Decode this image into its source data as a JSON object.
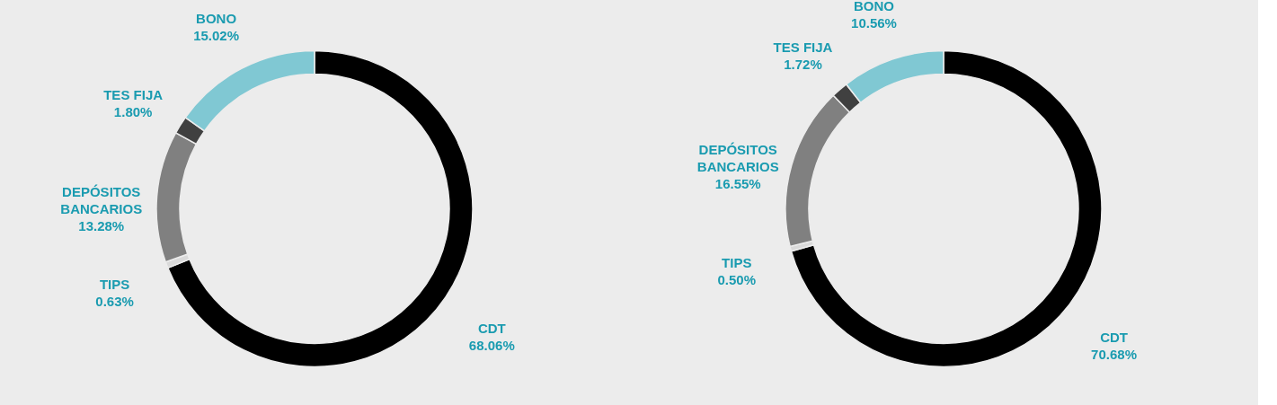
{
  "chart_data": [
    {
      "type": "donut",
      "categories": [
        "CDT",
        "TIPS",
        "DEPÓSITOS BANCARIOS",
        "TES FIJA",
        "BONO"
      ],
      "values": [
        68.06,
        0.63,
        13.28,
        1.8,
        15.02
      ],
      "value_labels": [
        "68.06%",
        "0.63%",
        "13.28%",
        "1.80%",
        "15.02%"
      ],
      "colors": [
        "#000000",
        "#d9d9d9",
        "#808080",
        "#404040",
        "#80c8d3"
      ],
      "legend": false
    },
    {
      "type": "donut",
      "categories": [
        "CDT",
        "TIPS",
        "DEPÓSITOS BANCARIOS",
        "TES FIJA",
        "BONO"
      ],
      "values": [
        70.68,
        0.5,
        16.55,
        1.72,
        10.56
      ],
      "value_labels": [
        "70.68%",
        "0.50%",
        "16.55%",
        "1.72%",
        "10.56%"
      ],
      "colors": [
        "#000000",
        "#d9d9d9",
        "#808080",
        "#404040",
        "#80c8d3"
      ],
      "legend": false
    }
  ]
}
